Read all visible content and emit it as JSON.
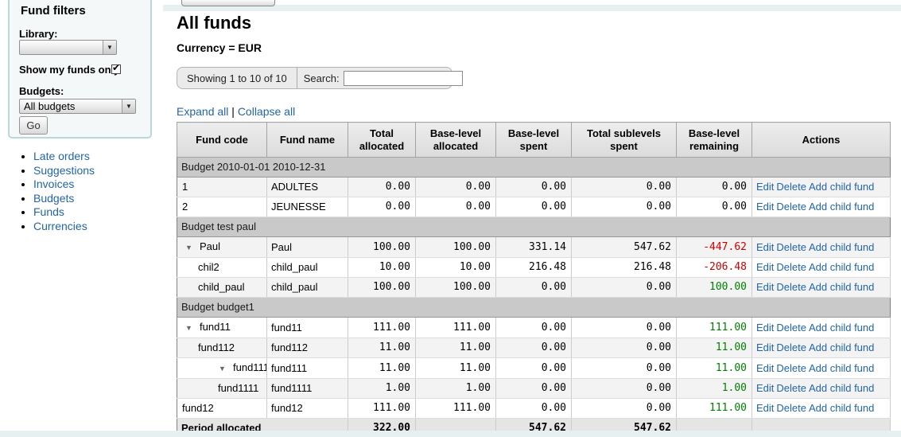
{
  "colors": {
    "panel_border": "#B9D8D9",
    "panel_bg": "#F4F8F9",
    "strip": "#E6F0F0",
    "link": "#2265A8",
    "negative": "#CC0000",
    "positive": "#008000",
    "group_row": "#C9C9C9"
  },
  "icons": {
    "collapse_toggle": "▼",
    "select_arrow": "▼",
    "checkbox_check": "✔"
  },
  "sidebar": {
    "filters": {
      "title": "Fund filters",
      "library_label": "Library:",
      "library_value": "",
      "show_my_funds_label": "Show my funds only",
      "show_my_funds_checked": true,
      "budgets_label": "Budgets:",
      "budgets_value": "All budgets",
      "go_label": "Go"
    },
    "nav": {
      "items": [
        {
          "label": "Late orders"
        },
        {
          "label": "Suggestions"
        },
        {
          "label": "Invoices"
        },
        {
          "label": "Budgets"
        },
        {
          "label": "Funds"
        },
        {
          "label": "Currencies"
        }
      ]
    }
  },
  "main": {
    "title": "All funds",
    "subtitle": "Currency = EUR",
    "pager": {
      "showing_text": "Showing 1 to 10 of 10",
      "search_label": "Search:",
      "search_value": ""
    },
    "links": {
      "expand_all": "Expand all",
      "separator": "|",
      "collapse_all": "Collapse all"
    }
  },
  "table": {
    "columns": [
      "Fund code",
      "Fund name",
      "Total allocated",
      "Base-level allocated",
      "Base-level spent",
      "Total sublevels spent",
      "Base-level remaining",
      "Actions"
    ],
    "action_links": [
      "Edit",
      "Delete",
      "Add child fund"
    ],
    "rows": [
      {
        "kind": "group",
        "label": "Budget 2010-01-01 2010-12-31"
      },
      {
        "kind": "fund",
        "code": "1",
        "name": "ADULTES",
        "indent": 6,
        "toggle": false,
        "striped": true,
        "total_allocated": "0.00",
        "base_allocated": "0.00",
        "base_spent": "0.00",
        "sublevels_spent": "0.00",
        "remaining": "0.00",
        "remaining_state": "zero"
      },
      {
        "kind": "fund",
        "code": "2",
        "name": "JEUNESSE",
        "indent": 6,
        "toggle": false,
        "striped": false,
        "total_allocated": "0.00",
        "base_allocated": "0.00",
        "base_spent": "0.00",
        "sublevels_spent": "0.00",
        "remaining": "0.00",
        "remaining_state": "zero"
      },
      {
        "kind": "group",
        "label": "Budget test paul"
      },
      {
        "kind": "fund",
        "code": "Paul",
        "name": "Paul",
        "indent": 10,
        "toggle": true,
        "striped": true,
        "total_allocated": "100.00",
        "base_allocated": "100.00",
        "base_spent": "331.14",
        "sublevels_spent": "547.62",
        "remaining": "-447.62",
        "remaining_state": "negative"
      },
      {
        "kind": "fund",
        "code": "chil2",
        "name": "child_paul",
        "indent": 26,
        "toggle": false,
        "striped": false,
        "total_allocated": "10.00",
        "base_allocated": "10.00",
        "base_spent": "216.48",
        "sublevels_spent": "216.48",
        "remaining": "-206.48",
        "remaining_state": "negative"
      },
      {
        "kind": "fund",
        "code": "child_paul",
        "name": "child_paul",
        "indent": 26,
        "toggle": false,
        "striped": true,
        "total_allocated": "100.00",
        "base_allocated": "100.00",
        "base_spent": "0.00",
        "sublevels_spent": "0.00",
        "remaining": "100.00",
        "remaining_state": "positive"
      },
      {
        "kind": "group",
        "label": "Budget budget1"
      },
      {
        "kind": "fund",
        "code": "fund11",
        "name": "fund11",
        "indent": 10,
        "toggle": true,
        "striped": false,
        "total_allocated": "111.00",
        "base_allocated": "111.00",
        "base_spent": "0.00",
        "sublevels_spent": "0.00",
        "remaining": "111.00",
        "remaining_state": "positive"
      },
      {
        "kind": "fund",
        "code": "fund112",
        "name": "fund112",
        "indent": 26,
        "toggle": false,
        "striped": true,
        "total_allocated": "11.00",
        "base_allocated": "11.00",
        "base_spent": "0.00",
        "sublevels_spent": "0.00",
        "remaining": "11.00",
        "remaining_state": "positive"
      },
      {
        "kind": "fund",
        "code": "fund111",
        "name": "fund111",
        "indent": 52,
        "toggle": true,
        "striped": false,
        "total_allocated": "11.00",
        "base_allocated": "11.00",
        "base_spent": "0.00",
        "sublevels_spent": "0.00",
        "remaining": "11.00",
        "remaining_state": "positive"
      },
      {
        "kind": "fund",
        "code": "fund1111",
        "name": "fund1111",
        "indent": 51,
        "toggle": false,
        "striped": true,
        "total_allocated": "1.00",
        "base_allocated": "1.00",
        "base_spent": "0.00",
        "sublevels_spent": "0.00",
        "remaining": "1.00",
        "remaining_state": "positive"
      },
      {
        "kind": "fund",
        "code": "fund12",
        "name": "fund12",
        "indent": 6,
        "toggle": false,
        "striped": false,
        "total_allocated": "111.00",
        "base_allocated": "111.00",
        "base_spent": "0.00",
        "sublevels_spent": "0.00",
        "remaining": "111.00",
        "remaining_state": "positive"
      },
      {
        "kind": "footer",
        "label": "Period allocated",
        "total_allocated": "322.00",
        "base_allocated": "",
        "base_spent": "547.62",
        "sublevels_spent": "547.62",
        "remaining": ""
      }
    ]
  }
}
